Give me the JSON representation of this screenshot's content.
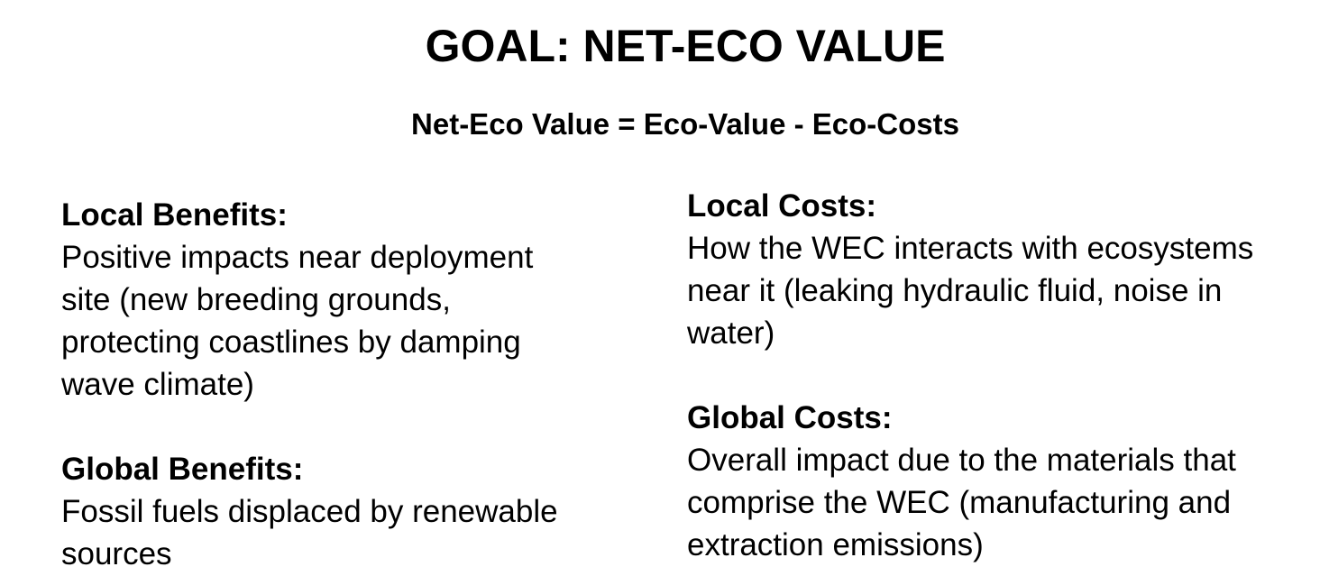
{
  "title": "GOAL: NET-ECO VALUE",
  "formula": "Net-Eco Value = Eco-Value - Eco-Costs",
  "sections": {
    "local_benefits": {
      "heading": "Local Benefits:",
      "lines": [
        "Positive impacts near deployment",
        "site (new breeding grounds,",
        "protecting coastlines by damping",
        "wave climate)"
      ]
    },
    "global_benefits": {
      "heading": "Global Benefits:",
      "lines": [
        "Fossil fuels displaced by renewable",
        "sources"
      ]
    },
    "local_costs": {
      "heading": "Local Costs:",
      "lines": [
        "How the WEC interacts with ecosystems",
        "near it (leaking hydraulic fluid, noise in",
        "water)"
      ]
    },
    "global_costs": {
      "heading": "Global Costs:",
      "lines": [
        "Overall impact due to the materials that",
        "comprise the WEC (manufacturing and",
        "extraction emissions)"
      ]
    }
  }
}
